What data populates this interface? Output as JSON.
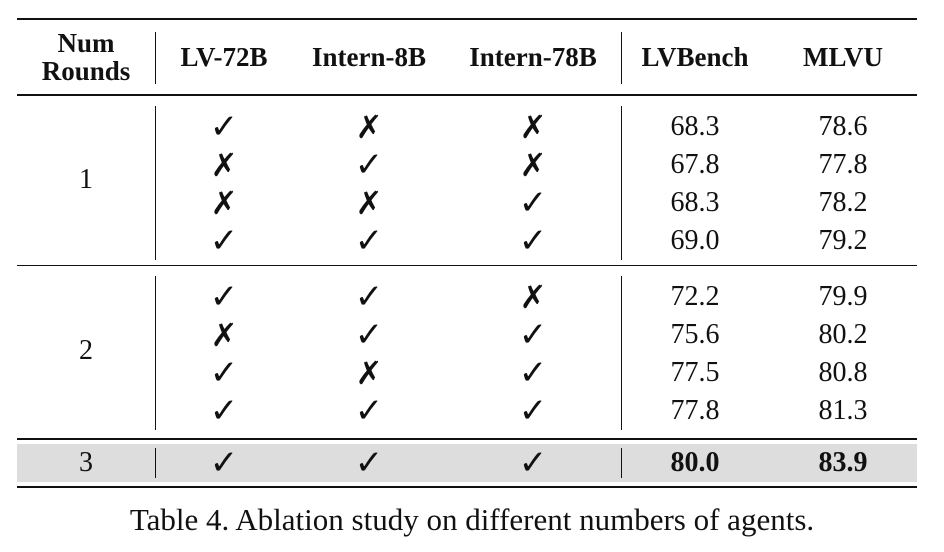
{
  "header": {
    "num_rounds_line1": "Num",
    "num_rounds_line2": "Rounds",
    "lv72b": "LV-72B",
    "intern8b": "Intern-8B",
    "intern78b": "Intern-78B",
    "lvbench": "LVBench",
    "mlvu": "MLVU"
  },
  "groups": [
    {
      "round": "1",
      "rows": [
        {
          "lv72b": true,
          "intern8b": false,
          "intern78b": false,
          "lvbench": "68.3",
          "mlvu": "78.6"
        },
        {
          "lv72b": false,
          "intern8b": true,
          "intern78b": false,
          "lvbench": "67.8",
          "mlvu": "77.8"
        },
        {
          "lv72b": false,
          "intern8b": false,
          "intern78b": true,
          "lvbench": "68.3",
          "mlvu": "78.2"
        },
        {
          "lv72b": true,
          "intern8b": true,
          "intern78b": true,
          "lvbench": "69.0",
          "mlvu": "79.2"
        }
      ]
    },
    {
      "round": "2",
      "rows": [
        {
          "lv72b": true,
          "intern8b": true,
          "intern78b": false,
          "lvbench": "72.2",
          "mlvu": "79.9"
        },
        {
          "lv72b": false,
          "intern8b": true,
          "intern78b": true,
          "lvbench": "75.6",
          "mlvu": "80.2"
        },
        {
          "lv72b": true,
          "intern8b": false,
          "intern78b": true,
          "lvbench": "77.5",
          "mlvu": "80.8"
        },
        {
          "lv72b": true,
          "intern8b": true,
          "intern78b": true,
          "lvbench": "77.8",
          "mlvu": "81.3"
        }
      ]
    }
  ],
  "final_row": {
    "round": "3",
    "lv72b": true,
    "intern8b": true,
    "intern78b": true,
    "lvbench": "80.0",
    "mlvu": "83.9",
    "highlight_color": "#dddddd"
  },
  "caption": "Table 4. Ablation study on different numbers of agents.",
  "marks": {
    "check": "✓",
    "cross": "✗"
  }
}
